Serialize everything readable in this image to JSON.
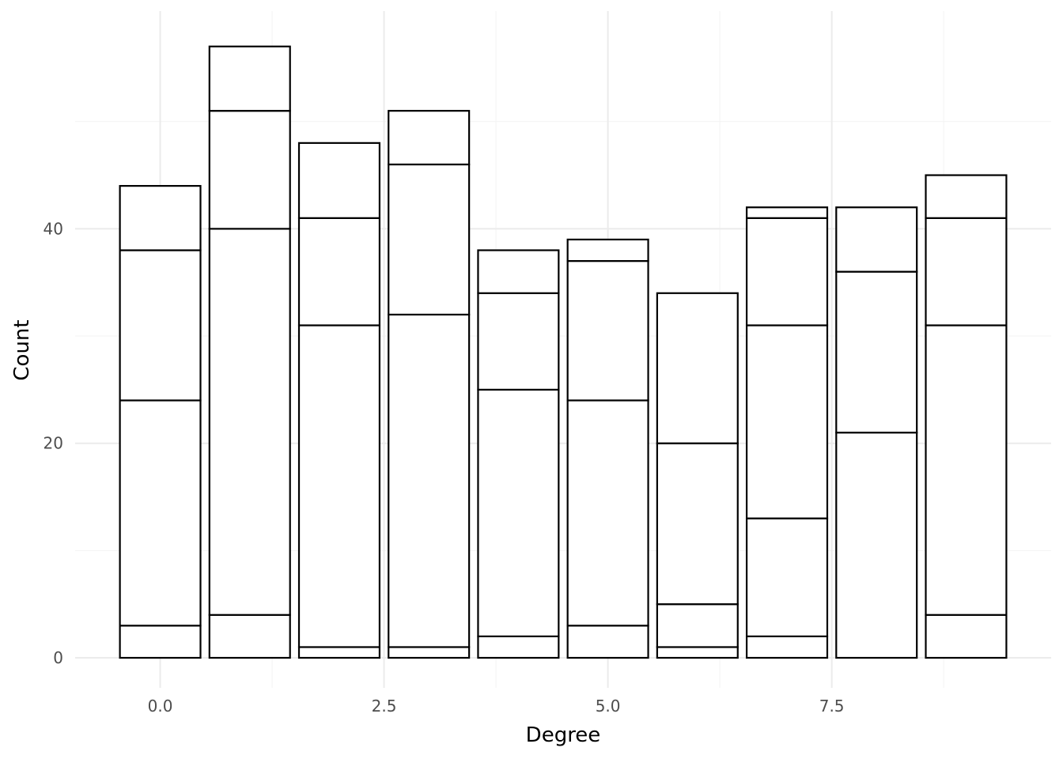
{
  "chart_data": {
    "type": "bar",
    "stacked": true,
    "xlabel": "Degree",
    "ylabel": "Count",
    "x_ticks": [
      "0.0",
      "2.5",
      "5.0",
      "7.5"
    ],
    "x_tick_values": [
      0,
      2.5,
      5,
      7.5
    ],
    "y_ticks": [
      "0",
      "20",
      "40"
    ],
    "y_tick_values": [
      0,
      20,
      40
    ],
    "xlim": [
      -0.95,
      9.95
    ],
    "ylim": [
      -2.8,
      60.3
    ],
    "grid": true,
    "legend": "none",
    "bar_fill": "#ffffff",
    "bar_outline": "#000000",
    "categories": [
      0,
      1,
      2,
      3,
      4,
      5,
      6,
      7,
      8,
      9
    ],
    "stack_boundaries": [
      [
        3,
        24,
        38,
        44
      ],
      [
        4,
        40,
        51,
        57
      ],
      [
        1,
        31,
        41,
        48
      ],
      [
        1,
        32,
        46,
        51
      ],
      [
        2,
        25,
        34,
        38
      ],
      [
        3,
        24,
        37,
        39
      ],
      [
        1,
        5,
        20,
        34
      ],
      [
        2,
        13,
        31,
        41,
        42
      ],
      [
        21,
        36,
        42
      ],
      [
        4,
        31,
        41,
        45
      ]
    ],
    "totals": [
      44,
      57,
      48,
      51,
      38,
      39,
      34,
      42,
      42,
      45
    ]
  }
}
